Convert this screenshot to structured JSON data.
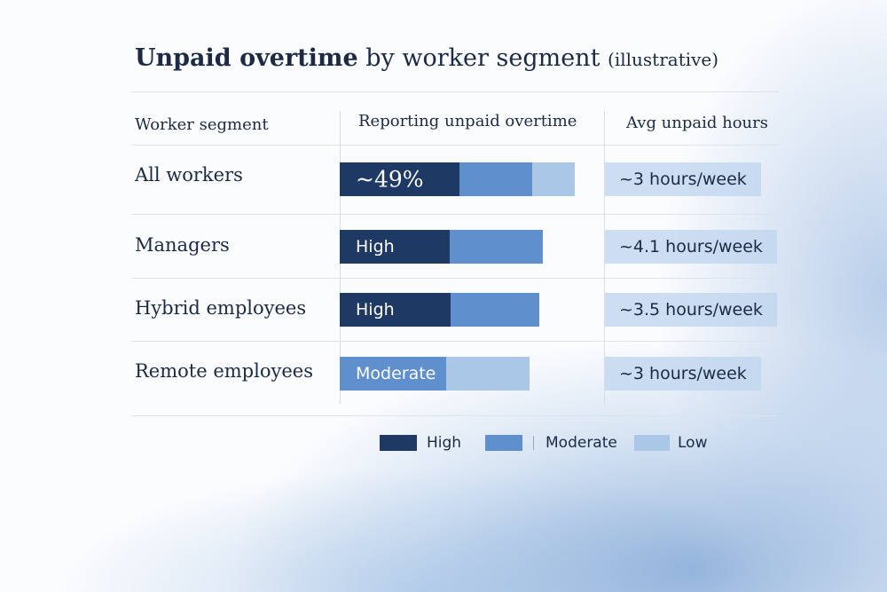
{
  "header": {
    "title_bold": "Unpaid overtime",
    "title_rest": "by worker segment",
    "title_note": "(illustrative)"
  },
  "table": {
    "columns": [
      "Worker segment",
      "Reporting unpaid overtime",
      "Avg unpaid hours"
    ],
    "rows": [
      [
        "All workers",
        "~49%",
        "~3 hours/week"
      ],
      [
        "Managers",
        "High",
        "~4.1 hours/week"
      ],
      [
        "Hybrid employees",
        "High",
        "~3.5 hours/week"
      ],
      [
        "Remote employees",
        "Moderate",
        "~3 hours/week"
      ]
    ]
  },
  "legend": [
    "High",
    "Moderate",
    "Low"
  ]
}
